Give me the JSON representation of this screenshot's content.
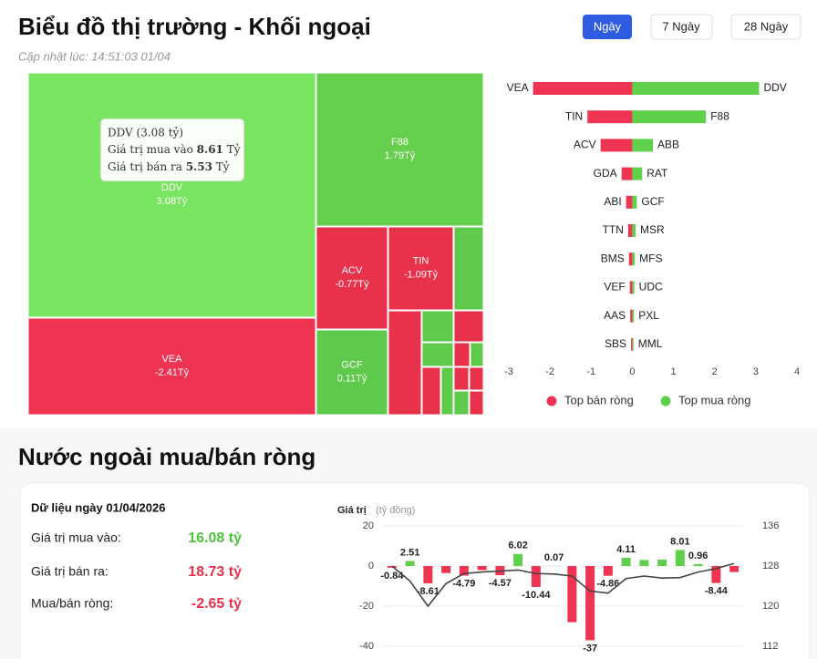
{
  "header": {
    "title": "Biểu đồ thị trường - Khối ngoại",
    "updated": "Cập nhật lúc: 14:51:03 01/04",
    "tabs": [
      "Ngày",
      "7 Ngày",
      "28 Ngày"
    ]
  },
  "treemap": {
    "cells": [
      {
        "label": "DDV",
        "value": "3.08Tỷ"
      },
      {
        "label": "F88",
        "value": "1.79Tỷ"
      },
      {
        "label": "VEA",
        "value": "-2.41Tỷ"
      },
      {
        "label": "ACV",
        "value": "-0.77Tỷ"
      },
      {
        "label": "TIN",
        "value": "-1.09Tỷ"
      },
      {
        "label": "GCF",
        "value": "0.11Tỷ"
      }
    ],
    "tooltip": {
      "title": "DDV (3.08 tỷ)",
      "rows": [
        {
          "label": "Giá trị mua vào",
          "value": "8.61",
          "unit": "Tỷ"
        },
        {
          "label": "Giá trị bán ra",
          "value": "5.53",
          "unit": "Tỷ"
        }
      ]
    }
  },
  "section_title": "Nước ngoài mua/bán ròng",
  "summary": {
    "title": "Dữ liệu ngày 01/04/2026",
    "rows": [
      {
        "label": "Giá trị mua vào:",
        "value": "16.08 tỷ"
      },
      {
        "label": "Giá trị bán ra:",
        "value": "18.73 tỷ"
      },
      {
        "label": "Mua/bán ròng:",
        "value": "-2.65 tỷ"
      }
    ]
  },
  "chart_data": [
    {
      "type": "diverging-bar",
      "orientation": "horizontal",
      "series": [
        {
          "name": "Top bán ròng",
          "color": "#ee3452",
          "labels": [
            "VEA",
            "TIN",
            "ACV",
            "GDA",
            "ABI",
            "TTN",
            "BMS",
            "VEF",
            "AAS",
            "SBS"
          ],
          "values": [
            -2.41,
            -1.09,
            -0.77,
            -0.26,
            -0.15,
            -0.1,
            -0.08,
            -0.06,
            -0.05,
            -0.03
          ]
        },
        {
          "name": "Top mua ròng",
          "color": "#5fd04a",
          "labels": [
            "DDV",
            "F88",
            "ABB",
            "RAT",
            "GCF",
            "MSR",
            "MFS",
            "UDC",
            "PXL",
            "MML"
          ],
          "values": [
            3.08,
            1.79,
            0.5,
            0.24,
            0.11,
            0.08,
            0.06,
            0.05,
            0.04,
            0.03
          ]
        }
      ],
      "xlim": [
        -3,
        4
      ],
      "xticks": [
        -3,
        -2,
        -1,
        0,
        1,
        2,
        3,
        4
      ],
      "legend": "bottom"
    },
    {
      "type": "bar-line",
      "y_label": "Giá trị",
      "y_unit": "(tỷ đồng)",
      "categories": [
        null,
        null,
        null,
        null,
        null,
        null,
        null,
        null,
        null,
        null,
        null,
        null,
        null,
        null,
        null,
        null,
        null,
        null,
        null,
        null
      ],
      "series": [
        {
          "type": "bar",
          "color": "#5fd04a",
          "negative_color": "#ee3452",
          "values": [
            -0.84,
            2.51,
            -8.61,
            -3.5,
            -4.79,
            -2.0,
            -4.57,
            6.02,
            -10.44,
            0.07,
            -28,
            -37,
            -4.86,
            4.11,
            3.0,
            3.2,
            8.01,
            0.96,
            -8.44,
            -3.0
          ],
          "value_labels": [
            "-0.84",
            "2.51",
            "-8.61",
            null,
            "-4.79",
            null,
            "-4.57",
            "6.02",
            "-10.44",
            "0.07",
            null,
            "-37",
            "-4.86",
            "4.11",
            null,
            null,
            "8.01",
            "0.96",
            "-8.44",
            null
          ]
        },
        {
          "type": "line",
          "color": "#444444",
          "axis": "y2",
          "values": [
            128,
            125,
            120,
            124.5,
            126.5,
            126.8,
            127,
            127.2,
            126.5,
            126.4,
            126,
            123,
            122.6,
            125.5,
            126,
            125.6,
            125.7,
            126.8,
            127.5,
            128.5
          ]
        }
      ],
      "ylim": [
        -40,
        20
      ],
      "yticks": [
        -40,
        -20,
        0,
        20
      ],
      "y2lim": [
        112,
        136
      ],
      "y2ticks": [
        112,
        120,
        128,
        136
      ],
      "grid": true
    }
  ]
}
